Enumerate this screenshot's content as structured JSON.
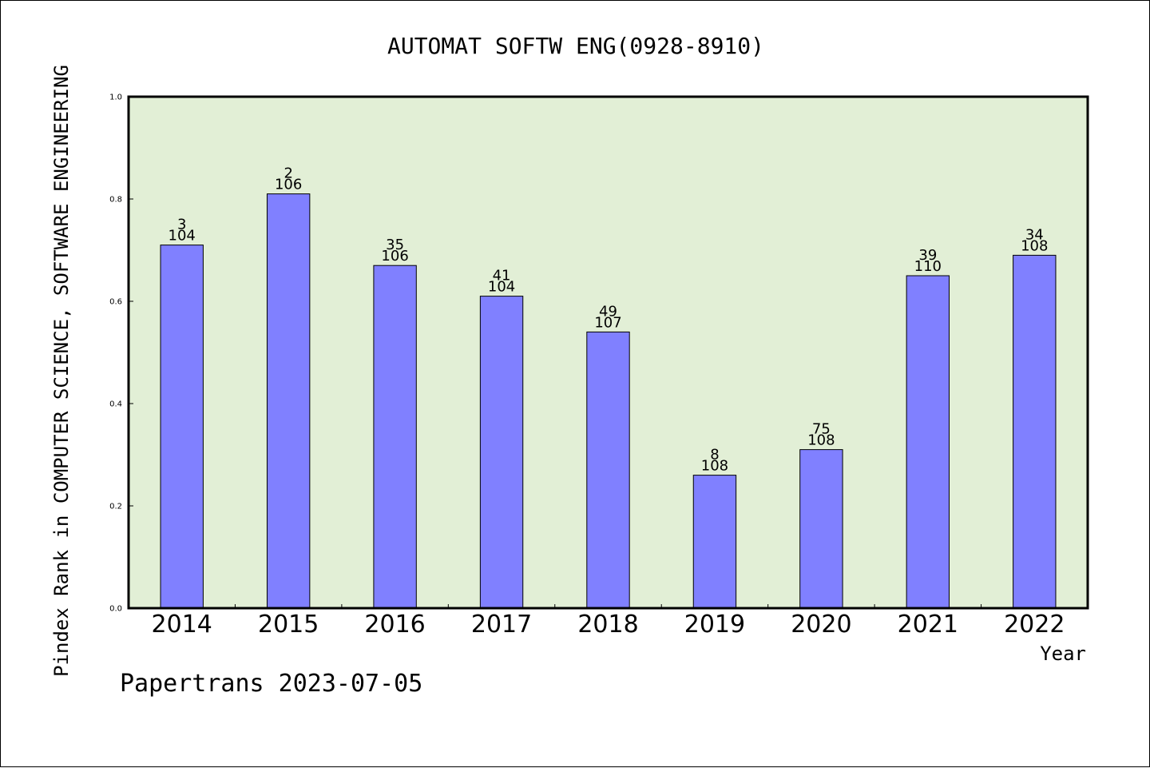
{
  "colors": {
    "plot_background": "#e2efd6",
    "bar_fill": "#8080ff",
    "bar_stroke": "#000000"
  },
  "chart_data": {
    "type": "bar",
    "title": "AUTOMAT SOFTW ENG(0928-8910)",
    "xlabel": "Year",
    "ylabel": "Pindex Rank in COMPUTER SCIENCE, SOFTWARE ENGINEERING",
    "categories": [
      "2014",
      "2015",
      "2016",
      "2017",
      "2018",
      "2019",
      "2020",
      "2021",
      "2022"
    ],
    "values": [
      0.71,
      0.81,
      0.67,
      0.61,
      0.54,
      0.26,
      0.31,
      0.65,
      0.69
    ],
    "rank": [
      "3",
      "2",
      "35",
      "41",
      "49",
      "8",
      "75",
      "39",
      "34"
    ],
    "total": [
      "104",
      "106",
      "106",
      "104",
      "107",
      "108",
      "108",
      "110",
      "108"
    ],
    "ylim": [
      0,
      1
    ],
    "yticks": [
      "0.0",
      "0.2",
      "0.4",
      "0.6",
      "0.8",
      "1.0"
    ],
    "grid": false,
    "legend": "none"
  },
  "footer": "Papertrans 2023-07-05"
}
